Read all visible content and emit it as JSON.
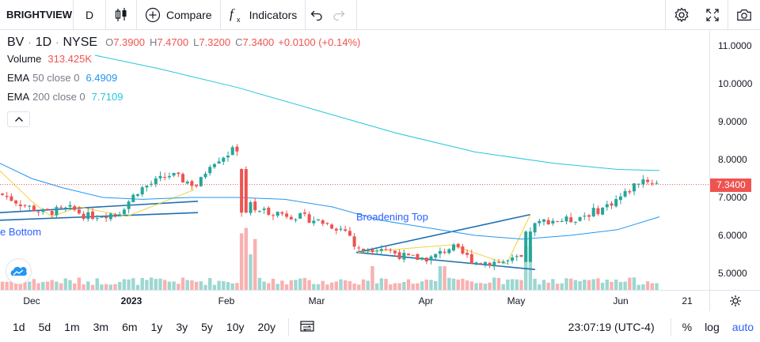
{
  "toolbar": {
    "symbol": "BRIGHTVIEW",
    "interval": "D",
    "compare_label": "Compare",
    "indicators_label": "Indicators"
  },
  "legend": {
    "symbol": "BV",
    "interval": "1D",
    "exchange": "NYSE",
    "open_key": "O",
    "open": "7.3900",
    "high_key": "H",
    "high": "7.4700",
    "low_key": "L",
    "low": "7.3200",
    "close_key": "C",
    "close": "7.3400",
    "change": "+0.0100 (+0.14%)",
    "volume_name": "Volume",
    "volume_value": "313.425K",
    "ema50_name": "EMA",
    "ema50_params": "50 close 0",
    "ema50_value": "6.4909",
    "ema200_name": "EMA",
    "ema200_params": "200 close 0",
    "ema200_value": "7.7109"
  },
  "annotations": {
    "broadening_top": "Broadening Top",
    "broadening_bottom": "e Bottom"
  },
  "price_axis": {
    "ticks": [
      "11.0000",
      "10.0000",
      "9.0000",
      "8.0000",
      "7.0000",
      "6.0000",
      "5.0000"
    ],
    "last_price": "7.3400"
  },
  "time_axis": {
    "ticks": [
      {
        "label": "Dec",
        "bold": false
      },
      {
        "label": "2023",
        "bold": true
      },
      {
        "label": "Feb",
        "bold": false
      },
      {
        "label": "Mar",
        "bold": false
      },
      {
        "label": "Apr",
        "bold": false
      },
      {
        "label": "May",
        "bold": false
      },
      {
        "label": "Jun",
        "bold": false
      },
      {
        "label": "21",
        "bold": false
      }
    ]
  },
  "bottom_bar": {
    "ranges": [
      "1d",
      "5d",
      "1m",
      "3m",
      "6m",
      "1y",
      "3y",
      "5y",
      "10y",
      "20y"
    ],
    "clock": "23:07:19 (UTC-4)",
    "percent": "%",
    "log": "log",
    "auto": "auto"
  },
  "colors": {
    "up": "#26a69a",
    "down": "#ef5350",
    "ema50": "#2196f3",
    "ema200": "#26c6da",
    "accent": "#2962ff"
  },
  "icons": [
    "candles-icon",
    "add-compare-icon",
    "fx-icon",
    "undo-icon",
    "redo-icon",
    "settings-icon",
    "fullscreen-icon",
    "camera-icon",
    "chevron-up-icon",
    "axis-settings-icon",
    "date-range-icon",
    "tradingview-logo-icon"
  ]
}
